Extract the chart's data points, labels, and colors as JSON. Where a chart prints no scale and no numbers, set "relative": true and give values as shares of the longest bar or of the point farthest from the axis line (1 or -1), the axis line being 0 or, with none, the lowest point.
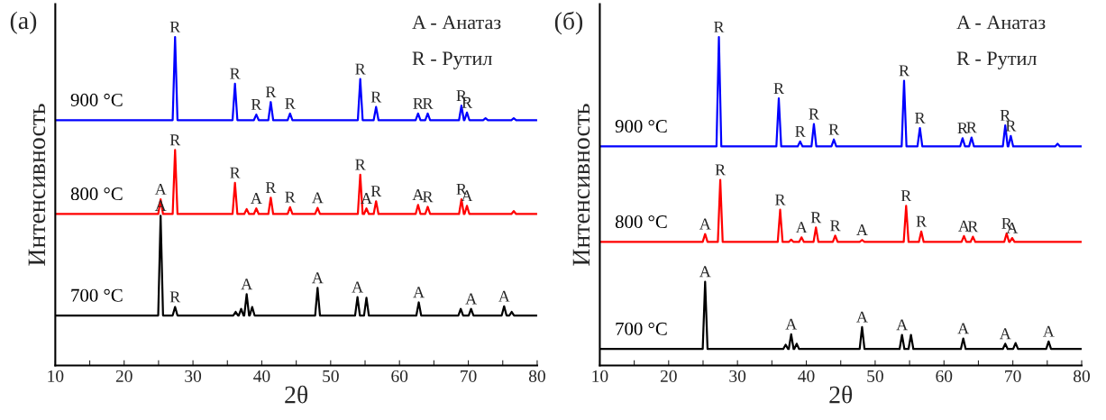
{
  "chart_data": [
    {
      "type": "line",
      "title": "(a)",
      "xlabel": "2θ",
      "ylabel": "Интенсивность",
      "relative": true,
      "legend": false,
      "grid": false,
      "xlim": [
        10,
        80
      ],
      "xticks": [
        10,
        {
          "value": 15,
          "label": null
        },
        20,
        {
          "value": 25,
          "label": null
        },
        30,
        {
          "value": 35,
          "label": null
        },
        40,
        {
          "value": 45,
          "label": null
        },
        50,
        {
          "value": 55,
          "label": null
        },
        60,
        {
          "value": 65,
          "label": null
        },
        70,
        {
          "value": 75,
          "label": null
        },
        80
      ],
      "series": [
        {
          "name": "900 °C",
          "color": "#0000ff",
          "x": [
            10,
            27.05,
            27.4,
            27.75,
            35.75,
            36.1,
            36.45,
            38.85,
            39.2,
            39.55,
            40.95,
            41.3,
            41.65,
            43.75,
            44.1,
            44.45,
            53.95,
            54.3,
            54.65,
            56.25,
            56.6,
            56.95,
            62.35,
            62.7,
            63.05,
            63.75,
            64.1,
            64.45,
            68.65,
            69.0,
            69.35,
            69.45,
            69.8,
            70.15,
            72.15,
            72.5,
            72.85,
            76.25,
            76.6,
            76.95,
            80
          ],
          "values": [
            0.747,
            0.747,
            1.0,
            0.747,
            0.747,
            0.858,
            0.747,
            0.747,
            0.764,
            0.747,
            0.747,
            0.802,
            0.747,
            0.747,
            0.767,
            0.747,
            0.747,
            0.872,
            0.747,
            0.747,
            0.787,
            0.747,
            0.747,
            0.767,
            0.747,
            0.747,
            0.767,
            0.747,
            0.747,
            0.791,
            0.747,
            0.747,
            0.77,
            0.747,
            0.747,
            0.753,
            0.747,
            0.747,
            0.753,
            0.747,
            0.747
          ]
        },
        {
          "name": "800 °C",
          "color": "#ff0000",
          "x": [
            10,
            24.95,
            25.3,
            25.65,
            27.05,
            27.4,
            27.75,
            35.75,
            36.1,
            36.45,
            37.45,
            37.8,
            38.15,
            38.85,
            39.2,
            39.55,
            40.95,
            41.3,
            41.65,
            43.75,
            44.1,
            44.45,
            47.75,
            48.1,
            48.45,
            53.95,
            54.3,
            54.65,
            54.85,
            55.2,
            55.55,
            56.25,
            56.6,
            56.95,
            62.35,
            62.7,
            63.05,
            63.75,
            64.1,
            64.45,
            68.65,
            69.0,
            69.35,
            69.45,
            69.8,
            70.15,
            76.25,
            76.6,
            76.95,
            80
          ],
          "values": [
            0.461,
            0.461,
            0.506,
            0.461,
            0.461,
            0.656,
            0.461,
            0.461,
            0.556,
            0.461,
            0.461,
            0.476,
            0.461,
            0.461,
            0.478,
            0.461,
            0.461,
            0.511,
            0.461,
            0.461,
            0.482,
            0.461,
            0.461,
            0.48,
            0.461,
            0.461,
            0.581,
            0.461,
            0.461,
            0.478,
            0.461,
            0.461,
            0.5,
            0.461,
            0.461,
            0.489,
            0.461,
            0.461,
            0.483,
            0.461,
            0.461,
            0.506,
            0.461,
            0.461,
            0.486,
            0.461,
            0.461,
            0.47,
            0.461,
            0.461
          ]
        },
        {
          "name": "700 °C",
          "color": "#000000",
          "x": [
            10,
            24.95,
            25.3,
            25.65,
            27.05,
            27.4,
            27.75,
            35.85,
            36.2,
            36.55,
            36.65,
            37.0,
            37.35,
            37.45,
            37.8,
            38.15,
            38.25,
            38.6,
            38.95,
            47.75,
            48.1,
            48.45,
            53.55,
            53.9,
            54.25,
            54.85,
            55.2,
            55.55,
            62.45,
            62.8,
            63.15,
            68.55,
            68.9,
            69.25,
            70.05,
            70.4,
            70.75,
            74.85,
            75.2,
            75.55,
            75.95,
            76.3,
            76.65,
            80
          ],
          "values": [
            0.152,
            0.152,
            0.456,
            0.152,
            0.152,
            0.178,
            0.152,
            0.152,
            0.163,
            0.152,
            0.152,
            0.172,
            0.152,
            0.152,
            0.217,
            0.152,
            0.152,
            0.178,
            0.152,
            0.152,
            0.236,
            0.152,
            0.152,
            0.208,
            0.152,
            0.152,
            0.206,
            0.152,
            0.152,
            0.192,
            0.152,
            0.152,
            0.172,
            0.152,
            0.152,
            0.172,
            0.152,
            0.152,
            0.18,
            0.152,
            0.152,
            0.163,
            0.152,
            0.152
          ]
        }
      ],
      "annotations": [
        "A - Анатаз",
        "R - Рутил",
        {
          "text": "R",
          "x": 27.4,
          "y": 1.0
        },
        {
          "text": "R",
          "x": 36.1,
          "y": 0.858
        },
        {
          "text": "R",
          "x": 39.2,
          "y": 0.764
        },
        {
          "text": "R",
          "x": 41.3,
          "y": 0.802
        },
        {
          "text": "R",
          "x": 44.1,
          "y": 0.767
        },
        {
          "text": "R",
          "x": 54.3,
          "y": 0.872
        },
        {
          "text": "R",
          "x": 56.6,
          "y": 0.787
        },
        {
          "text": "R",
          "x": 62.7,
          "y": 0.767
        },
        {
          "text": "R",
          "x": 64.1,
          "y": 0.767
        },
        {
          "text": "R",
          "x": 69.0,
          "y": 0.791
        },
        {
          "text": "R",
          "x": 69.8,
          "y": 0.77
        },
        {
          "text": "A",
          "x": 25.3,
          "y": 0.506
        },
        {
          "text": "R",
          "x": 27.4,
          "y": 0.656
        },
        {
          "text": "R",
          "x": 36.1,
          "y": 0.556
        },
        {
          "text": "A",
          "x": 39.2,
          "y": 0.478
        },
        {
          "text": "R",
          "x": 41.3,
          "y": 0.511
        },
        {
          "text": "R",
          "x": 44.1,
          "y": 0.482
        },
        {
          "text": "A",
          "x": 48.1,
          "y": 0.48
        },
        {
          "text": "R",
          "x": 54.3,
          "y": 0.581
        },
        {
          "text": "A",
          "x": 55.2,
          "y": 0.478
        },
        {
          "text": "R",
          "x": 56.6,
          "y": 0.5
        },
        {
          "text": "A",
          "x": 62.7,
          "y": 0.489
        },
        {
          "text": "R",
          "x": 64.1,
          "y": 0.483
        },
        {
          "text": "R",
          "x": 69.0,
          "y": 0.506
        },
        {
          "text": "A",
          "x": 69.8,
          "y": 0.486
        },
        {
          "text": "A",
          "x": 25.3,
          "y": 0.456
        },
        {
          "text": "R",
          "x": 27.4,
          "y": 0.178
        },
        {
          "text": "A",
          "x": 37.8,
          "y": 0.217
        },
        {
          "text": "A",
          "x": 48.1,
          "y": 0.236
        },
        {
          "text": "A",
          "x": 53.9,
          "y": 0.208
        },
        {
          "text": "A",
          "x": 62.8,
          "y": 0.192
        },
        {
          "text": "A",
          "x": 70.4,
          "y": 0.172
        },
        {
          "text": "A",
          "x": 75.2,
          "y": 0.18
        }
      ]
    },
    {
      "type": "line",
      "title": "(б)",
      "xlabel": "2θ",
      "ylabel": "Интенсивность",
      "relative": true,
      "legend": false,
      "grid": false,
      "xlim": [
        10,
        80
      ],
      "xticks": [
        10,
        {
          "value": 15,
          "label": null
        },
        20,
        {
          "value": 25,
          "label": null
        },
        30,
        {
          "value": 35,
          "label": null
        },
        40,
        {
          "value": 45,
          "label": null
        },
        50,
        {
          "value": 55,
          "label": null
        },
        60,
        {
          "value": 65,
          "label": null
        },
        70,
        {
          "value": 75,
          "label": null
        },
        80
      ],
      "series": [
        {
          "name": "900 °C",
          "color": "#0000ff",
          "x": [
            10,
            26.95,
            27.3,
            27.65,
            35.65,
            36.0,
            36.35,
            38.75,
            39.1,
            39.45,
            40.75,
            41.1,
            41.45,
            43.65,
            44.0,
            44.35,
            53.85,
            54.2,
            54.55,
            56.15,
            56.5,
            56.85,
            62.35,
            62.7,
            63.05,
            63.65,
            64.0,
            64.35,
            68.55,
            68.9,
            69.25,
            69.35,
            69.7,
            70.05,
            76.15,
            76.5,
            76.85,
            80
          ],
          "values": [
            0.667,
            0.667,
            1.0,
            0.667,
            0.667,
            0.813,
            0.667,
            0.667,
            0.682,
            0.667,
            0.667,
            0.735,
            0.667,
            0.667,
            0.688,
            0.667,
            0.667,
            0.867,
            0.667,
            0.667,
            0.723,
            0.667,
            0.667,
            0.692,
            0.667,
            0.667,
            0.694,
            0.667,
            0.667,
            0.731,
            0.667,
            0.667,
            0.699,
            0.667,
            0.667,
            0.675,
            0.667,
            0.667
          ]
        },
        {
          "name": "800 °C",
          "color": "#ff0000",
          "x": [
            10,
            24.95,
            25.3,
            25.65,
            27.15,
            27.5,
            27.85,
            35.85,
            36.2,
            36.55,
            37.45,
            37.8,
            38.15,
            38.95,
            39.3,
            39.65,
            41.05,
            41.4,
            41.75,
            43.85,
            44.2,
            44.55,
            47.75,
            48.1,
            48.45,
            54.15,
            54.5,
            54.85,
            56.35,
            56.7,
            57.05,
            62.55,
            62.9,
            63.25,
            63.85,
            64.2,
            64.55,
            68.75,
            69.1,
            69.45,
            69.55,
            69.9,
            70.25,
            80
          ],
          "values": [
            0.376,
            0.376,
            0.4,
            0.376,
            0.376,
            0.565,
            0.376,
            0.376,
            0.474,
            0.376,
            0.376,
            0.383,
            0.376,
            0.376,
            0.39,
            0.376,
            0.376,
            0.42,
            0.376,
            0.376,
            0.395,
            0.376,
            0.376,
            0.382,
            0.376,
            0.376,
            0.486,
            0.376,
            0.376,
            0.408,
            0.376,
            0.376,
            0.394,
            0.376,
            0.376,
            0.392,
            0.376,
            0.376,
            0.402,
            0.376,
            0.376,
            0.388,
            0.376,
            0.376
          ]
        },
        {
          "name": "700 °C",
          "color": "#000000",
          "x": [
            10,
            24.95,
            25.3,
            25.65,
            36.65,
            37.0,
            37.35,
            37.45,
            37.8,
            38.15,
            38.25,
            38.6,
            38.95,
            47.75,
            48.1,
            48.45,
            53.55,
            53.9,
            54.25,
            54.85,
            55.2,
            55.55,
            62.45,
            62.8,
            63.15,
            68.55,
            68.9,
            69.25,
            70.05,
            70.4,
            70.75,
            74.85,
            75.2,
            75.55,
            80
          ],
          "values": [
            0.05,
            0.05,
            0.255,
            0.05,
            0.05,
            0.063,
            0.05,
            0.05,
            0.095,
            0.05,
            0.05,
            0.066,
            0.05,
            0.05,
            0.117,
            0.05,
            0.05,
            0.093,
            0.05,
            0.05,
            0.093,
            0.05,
            0.05,
            0.082,
            0.05,
            0.05,
            0.066,
            0.05,
            0.05,
            0.068,
            0.05,
            0.05,
            0.073,
            0.05,
            0.05
          ]
        }
      ],
      "annotations": [
        "A - Анатаз",
        "R - Рутил",
        {
          "text": "R",
          "x": 27.3,
          "y": 1.0
        },
        {
          "text": "R",
          "x": 36.0,
          "y": 0.813
        },
        {
          "text": "R",
          "x": 39.1,
          "y": 0.682
        },
        {
          "text": "R",
          "x": 41.1,
          "y": 0.735
        },
        {
          "text": "R",
          "x": 44.0,
          "y": 0.688
        },
        {
          "text": "R",
          "x": 54.2,
          "y": 0.867
        },
        {
          "text": "R",
          "x": 56.5,
          "y": 0.723
        },
        {
          "text": "R",
          "x": 62.7,
          "y": 0.692
        },
        {
          "text": "R",
          "x": 64.0,
          "y": 0.694
        },
        {
          "text": "R",
          "x": 68.9,
          "y": 0.731
        },
        {
          "text": "R",
          "x": 69.7,
          "y": 0.699
        },
        {
          "text": "A",
          "x": 25.3,
          "y": 0.4
        },
        {
          "text": "R",
          "x": 27.5,
          "y": 0.565
        },
        {
          "text": "R",
          "x": 36.2,
          "y": 0.474
        },
        {
          "text": "A",
          "x": 39.3,
          "y": 0.39
        },
        {
          "text": "R",
          "x": 41.4,
          "y": 0.42
        },
        {
          "text": "R",
          "x": 44.2,
          "y": 0.395
        },
        {
          "text": "A",
          "x": 48.1,
          "y": 0.382
        },
        {
          "text": "R",
          "x": 54.5,
          "y": 0.486
        },
        {
          "text": "R",
          "x": 56.7,
          "y": 0.408
        },
        {
          "text": "A",
          "x": 62.9,
          "y": 0.394
        },
        {
          "text": "R",
          "x": 64.2,
          "y": 0.392
        },
        {
          "text": "R",
          "x": 69.1,
          "y": 0.402
        },
        {
          "text": "A",
          "x": 69.9,
          "y": 0.388
        },
        {
          "text": "A",
          "x": 25.3,
          "y": 0.255
        },
        {
          "text": "A",
          "x": 37.8,
          "y": 0.095
        },
        {
          "text": "A",
          "x": 48.1,
          "y": 0.117
        },
        {
          "text": "A",
          "x": 53.9,
          "y": 0.093
        },
        {
          "text": "A",
          "x": 62.8,
          "y": 0.082
        },
        {
          "text": "A",
          "x": 68.9,
          "y": 0.066
        },
        {
          "text": "A",
          "x": 75.2,
          "y": 0.073
        }
      ]
    }
  ]
}
